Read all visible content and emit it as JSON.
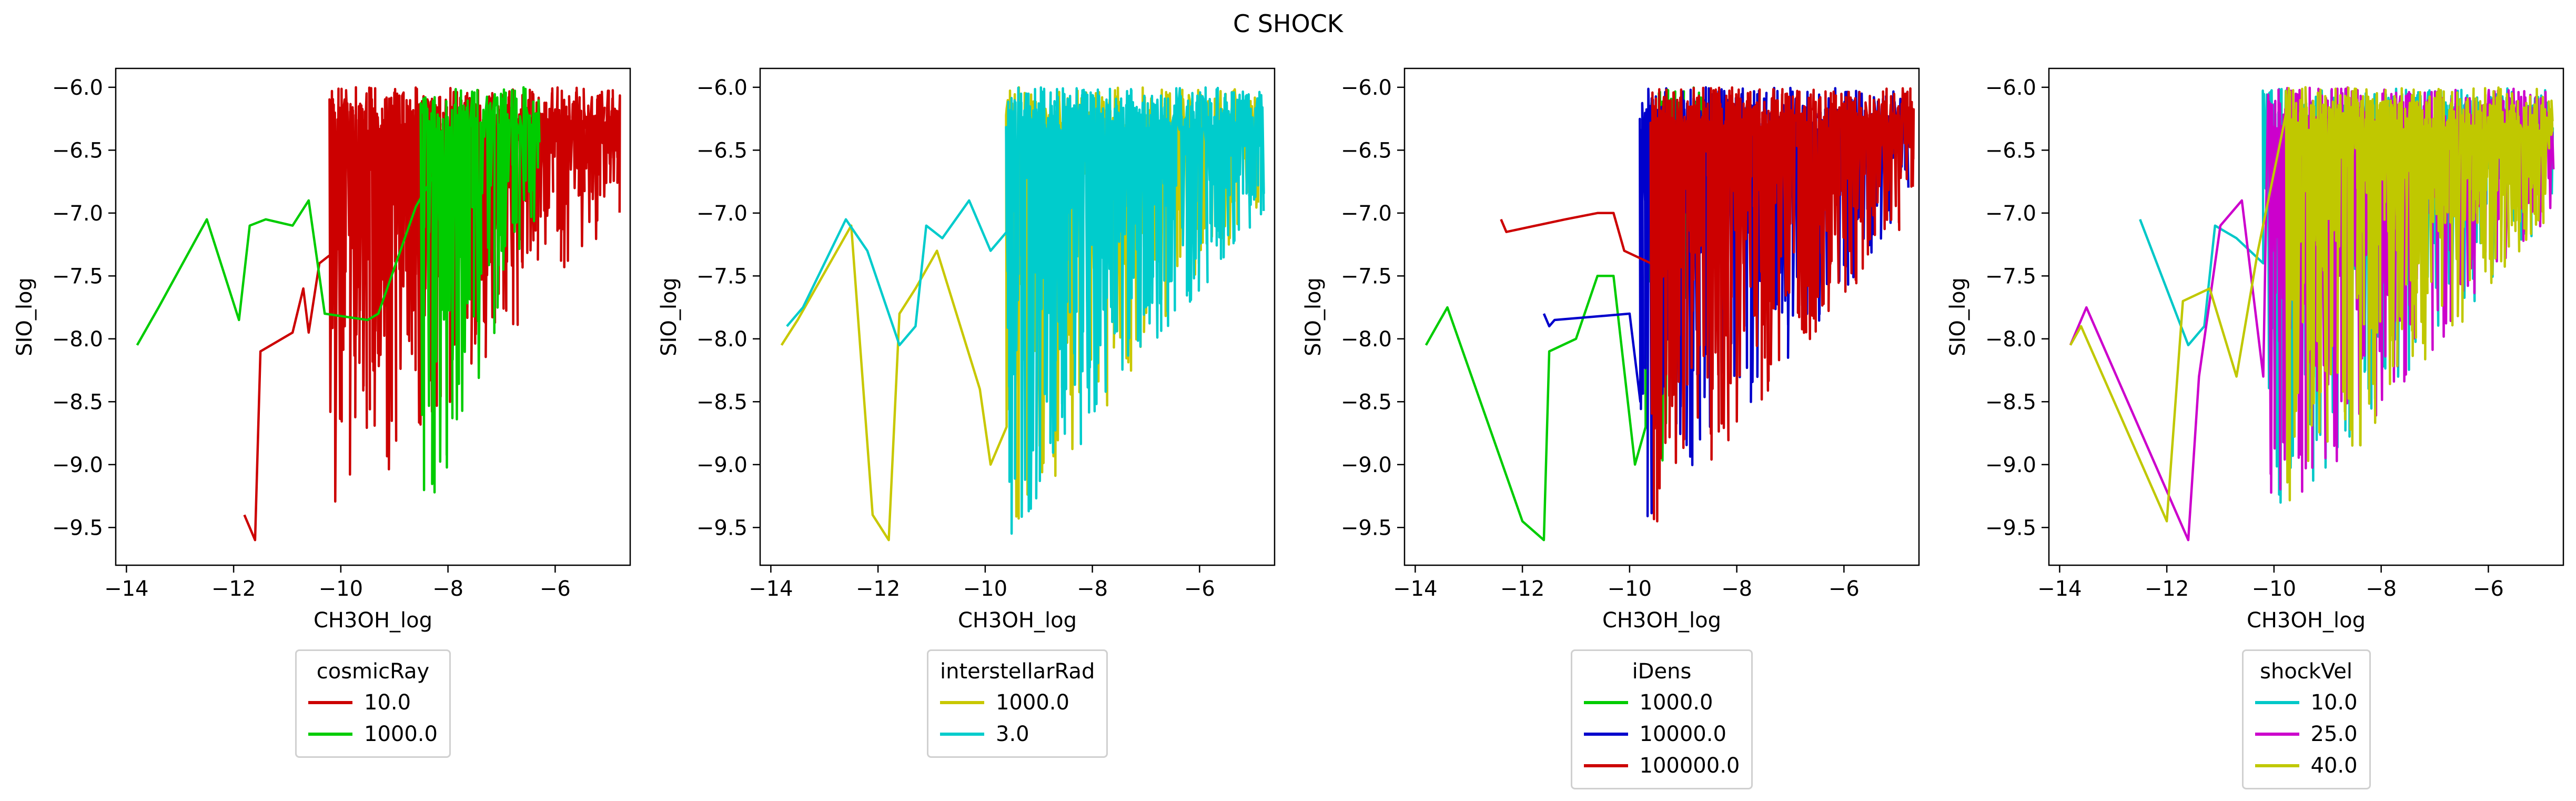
{
  "suptitle": "C SHOCK",
  "chart_data": [
    {
      "type": "line",
      "title": "",
      "xlabel": "CH3OH_log",
      "ylabel": "SIO_log",
      "xlim": [
        -14.2,
        -4.6
      ],
      "ylim": [
        -9.8,
        -5.85
      ],
      "xticks": [
        -14,
        -12,
        -10,
        -8,
        -6
      ],
      "yticks": [
        -9.5,
        -9.0,
        -8.5,
        -8.0,
        -7.5,
        -7.0,
        -6.5,
        -6.0
      ],
      "grid": false,
      "legend": {
        "title": "cosmicRay",
        "placement": "below"
      },
      "series": [
        {
          "name": "10.0",
          "color": "#cc0000",
          "seed": 11,
          "sparse": [
            [
              -11.8,
              -9.4
            ],
            [
              -11.6,
              -9.6
            ],
            [
              -11.5,
              -8.1
            ],
            [
              -11.3,
              -8.05
            ],
            [
              -10.9,
              -7.95
            ],
            [
              -10.7,
              -7.6
            ],
            [
              -10.6,
              -7.95
            ],
            [
              -10.4,
              -7.4
            ],
            [
              -10.1,
              -7.3
            ]
          ],
          "dense": {
            "xrange": [
              -10.2,
              -4.8
            ],
            "n": 520
          }
        },
        {
          "name": "1000.0",
          "color": "#00cc00",
          "seed": 23,
          "sparse": [
            [
              -13.8,
              -8.05
            ],
            [
              -13.6,
              -7.9
            ],
            [
              -13.4,
              -7.75
            ],
            [
              -12.5,
              -7.05
            ],
            [
              -11.9,
              -7.85
            ],
            [
              -11.7,
              -7.1
            ],
            [
              -11.4,
              -7.05
            ],
            [
              -10.9,
              -7.1
            ],
            [
              -10.6,
              -6.9
            ],
            [
              -10.3,
              -7.8
            ],
            [
              -9.5,
              -7.85
            ],
            [
              -9.3,
              -7.8
            ],
            [
              -8.6,
              -6.95
            ],
            [
              -8.2,
              -6.65
            ]
          ],
          "dense": {
            "xrange": [
              -8.5,
              -6.3
            ],
            "n": 150
          }
        }
      ]
    },
    {
      "type": "line",
      "title": "",
      "xlabel": "CH3OH_log",
      "ylabel": "SIO_log",
      "xlim": [
        -14.2,
        -4.6
      ],
      "ylim": [
        -9.8,
        -5.85
      ],
      "xticks": [
        -14,
        -12,
        -10,
        -8,
        -6
      ],
      "yticks": [
        -9.5,
        -9.0,
        -8.5,
        -8.0,
        -7.5,
        -7.0,
        -6.5,
        -6.0
      ],
      "grid": false,
      "legend": {
        "title": "interstellarRad",
        "placement": "below"
      },
      "series": [
        {
          "name": "1000.0",
          "color": "#c8c800",
          "seed": 37,
          "sparse": [
            [
              -13.8,
              -8.05
            ],
            [
              -13.5,
              -7.85
            ],
            [
              -12.5,
              -7.1
            ],
            [
              -12.1,
              -9.4
            ],
            [
              -11.8,
              -9.6
            ],
            [
              -11.6,
              -7.8
            ],
            [
              -11.3,
              -7.6
            ],
            [
              -10.9,
              -7.3
            ],
            [
              -10.1,
              -8.4
            ],
            [
              -9.9,
              -9.0
            ],
            [
              -9.6,
              -8.7
            ]
          ],
          "dense": {
            "xrange": [
              -9.6,
              -4.9
            ],
            "n": 320
          }
        },
        {
          "name": "3.0",
          "color": "#00cccc",
          "seed": 51,
          "sparse": [
            [
              -13.7,
              -7.9
            ],
            [
              -13.4,
              -7.75
            ],
            [
              -12.6,
              -7.05
            ],
            [
              -12.2,
              -7.3
            ],
            [
              -11.6,
              -8.05
            ],
            [
              -11.3,
              -7.9
            ],
            [
              -11.1,
              -7.1
            ],
            [
              -10.8,
              -7.2
            ],
            [
              -10.3,
              -6.9
            ],
            [
              -9.9,
              -7.3
            ],
            [
              -9.6,
              -7.15
            ]
          ],
          "dense": {
            "xrange": [
              -9.6,
              -4.8
            ],
            "n": 480
          }
        }
      ]
    },
    {
      "type": "line",
      "title": "",
      "xlabel": "CH3OH_log",
      "ylabel": "SIO_log",
      "xlim": [
        -14.2,
        -4.6
      ],
      "ylim": [
        -9.8,
        -5.85
      ],
      "xticks": [
        -14,
        -12,
        -10,
        -8,
        -6
      ],
      "yticks": [
        -9.5,
        -9.0,
        -8.5,
        -8.0,
        -7.5,
        -7.0,
        -6.5,
        -6.0
      ],
      "grid": false,
      "legend": {
        "title": "iDens",
        "placement": "below"
      },
      "series": [
        {
          "name": "1000.0",
          "color": "#00cc00",
          "seed": 63,
          "sparse": [
            [
              -13.8,
              -8.05
            ],
            [
              -13.6,
              -7.9
            ],
            [
              -13.4,
              -7.75
            ],
            [
              -12.0,
              -9.45
            ],
            [
              -11.6,
              -9.6
            ],
            [
              -11.5,
              -8.1
            ],
            [
              -11.0,
              -8.0
            ],
            [
              -10.6,
              -7.5
            ],
            [
              -10.3,
              -7.5
            ],
            [
              -9.9,
              -9.0
            ],
            [
              -9.7,
              -8.7
            ]
          ],
          "dense": {
            "xrange": [
              -9.7,
              -8.3
            ],
            "n": 90
          }
        },
        {
          "name": "10000.0",
          "color": "#0000cc",
          "seed": 71,
          "sparse": [
            [
              -11.6,
              -7.8
            ],
            [
              -11.5,
              -7.9
            ],
            [
              -11.4,
              -7.85
            ],
            [
              -10.0,
              -7.8
            ],
            [
              -9.8,
              -8.5
            ]
          ],
          "dense": {
            "xrange": [
              -9.8,
              -4.8
            ],
            "n": 360
          }
        },
        {
          "name": "100000.0",
          "color": "#cc0000",
          "seed": 83,
          "sparse": [
            [
              -12.4,
              -7.05
            ],
            [
              -12.3,
              -7.15
            ],
            [
              -11.2,
              -7.05
            ],
            [
              -10.6,
              -7.0
            ],
            [
              -10.3,
              -7.0
            ],
            [
              -10.1,
              -7.3
            ],
            [
              -9.6,
              -7.4
            ]
          ],
          "dense": {
            "xrange": [
              -9.6,
              -4.7
            ],
            "n": 520
          }
        }
      ]
    },
    {
      "type": "line",
      "title": "",
      "xlabel": "CH3OH_log",
      "ylabel": "SIO_log",
      "xlim": [
        -14.2,
        -4.6
      ],
      "ylim": [
        -9.8,
        -5.85
      ],
      "xticks": [
        -14,
        -12,
        -10,
        -8,
        -6
      ],
      "yticks": [
        -9.5,
        -9.0,
        -8.5,
        -8.0,
        -7.5,
        -7.0,
        -6.5,
        -6.0
      ],
      "grid": false,
      "legend": {
        "title": "shockVel",
        "placement": "below"
      },
      "series": [
        {
          "name": "10.0",
          "color": "#00c8c8",
          "seed": 97,
          "sparse": [
            [
              -12.5,
              -7.05
            ],
            [
              -11.6,
              -8.05
            ],
            [
              -11.3,
              -7.9
            ],
            [
              -11.1,
              -7.1
            ],
            [
              -10.7,
              -7.2
            ],
            [
              -10.2,
              -7.4
            ]
          ],
          "dense": {
            "xrange": [
              -10.2,
              -4.8
            ],
            "n": 400
          }
        },
        {
          "name": "25.0",
          "color": "#cc00cc",
          "seed": 109,
          "sparse": [
            [
              -13.8,
              -8.05
            ],
            [
              -13.5,
              -7.75
            ],
            [
              -11.6,
              -9.6
            ],
            [
              -11.4,
              -8.3
            ],
            [
              -11.0,
              -7.1
            ],
            [
              -10.6,
              -6.9
            ],
            [
              -10.2,
              -8.3
            ]
          ],
          "dense": {
            "xrange": [
              -10.1,
              -4.8
            ],
            "n": 420
          }
        },
        {
          "name": "40.0",
          "color": "#c0c800",
          "seed": 127,
          "sparse": [
            [
              -13.8,
              -8.05
            ],
            [
              -13.6,
              -7.9
            ],
            [
              -12.0,
              -9.45
            ],
            [
              -11.7,
              -7.7
            ],
            [
              -11.2,
              -7.6
            ],
            [
              -10.7,
              -8.3
            ],
            [
              -10.3,
              -7.3
            ]
          ],
          "dense": {
            "xrange": [
              -9.8,
              -4.8
            ],
            "n": 480
          }
        }
      ]
    }
  ]
}
